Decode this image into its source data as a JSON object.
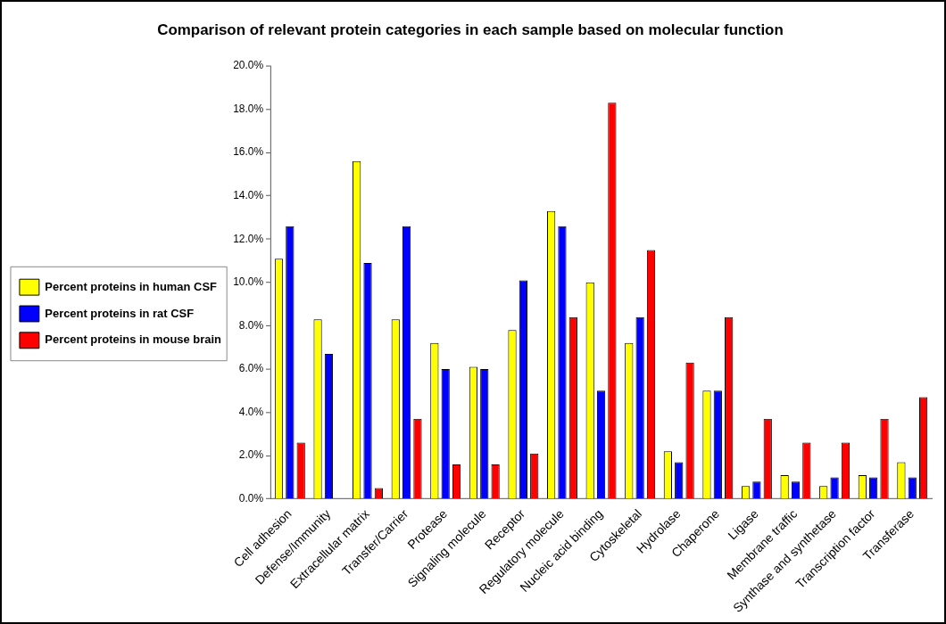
{
  "chart_data": {
    "type": "bar",
    "title": "Comparison of relevant protein categories in each sample based on molecular function",
    "categories": [
      "Cell adhesion",
      "Defense/Immunity",
      "Extracellular matrix",
      "Transfer/Carrier",
      "Protease",
      "Signaling molecule",
      "Receptor",
      "Regulatory molecule",
      "Nucleic acid binding",
      "Cytoskeletal",
      "Hydrolase",
      "Chaperone",
      "Ligase",
      "Membrane traffic",
      "Synthase and synthetase",
      "Transcription factor",
      "Transferase"
    ],
    "series": [
      {
        "name": "Percent proteins in human CSF",
        "color": "#ffff00",
        "values": [
          11.1,
          8.3,
          15.6,
          8.3,
          7.2,
          6.1,
          7.8,
          13.3,
          10.0,
          7.2,
          2.2,
          5.0,
          0.6,
          1.1,
          0.6,
          1.1,
          1.7
        ]
      },
      {
        "name": "Percent proteins in rat CSF",
        "color": "#0000ff",
        "values": [
          12.6,
          6.7,
          10.9,
          12.6,
          6.0,
          6.0,
          10.1,
          12.6,
          5.0,
          8.4,
          1.7,
          5.0,
          0.8,
          0.8,
          1.0,
          1.0,
          1.0
        ]
      },
      {
        "name": "Percent proteins in mouse brain",
        "color": "#ff0000",
        "values": [
          2.6,
          0,
          0.5,
          3.7,
          1.6,
          1.6,
          2.1,
          8.4,
          18.3,
          11.5,
          6.3,
          8.4,
          3.7,
          2.6,
          2.6,
          3.7,
          4.7
        ]
      }
    ],
    "ylim": [
      0,
      20
    ],
    "yticks": [
      {
        "value": 0,
        "label": "0.0%"
      },
      {
        "value": 2,
        "label": "2.0%"
      },
      {
        "value": 4,
        "label": "4.0%"
      },
      {
        "value": 6,
        "label": "6.0%"
      },
      {
        "value": 8,
        "label": "8.0%"
      },
      {
        "value": 10,
        "label": "10.0%"
      },
      {
        "value": 12,
        "label": "12.0%"
      },
      {
        "value": 14,
        "label": "14.0%"
      },
      {
        "value": 16,
        "label": "16.0%"
      },
      {
        "value": 18,
        "label": "18.0%"
      },
      {
        "value": 20,
        "label": "20.0%"
      }
    ],
    "grid": false,
    "legend": "left"
  }
}
